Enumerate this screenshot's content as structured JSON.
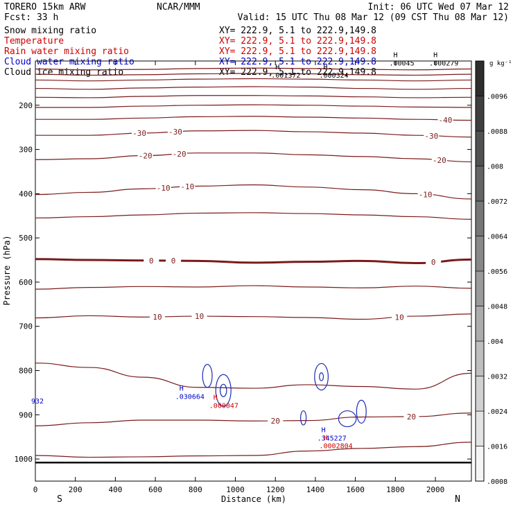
{
  "header": {
    "model": "TORERO  15km ARW",
    "center": "NCAR/MMM",
    "init": "Init: 06 UTC Wed 07 Mar 12",
    "fcst": "Fcst:   33 h",
    "valid": "Valid: 15 UTC Thu 08 Mar 12 (09 CST Thu 08 Mar 12)"
  },
  "fields": [
    {
      "name": "Snow mixing ratio",
      "xy": "XY= 222.9,  5.1 to 222.9,149.8",
      "color": "#000000"
    },
    {
      "name": "Temperature",
      "xy": "XY= 222.9,  5.1 to 222.9,149.8",
      "color": "#cc0000"
    },
    {
      "name": "Rain water mixing ratio",
      "xy": "XY= 222.9,  5.1 to 222.9,149.8",
      "color": "#cc0000"
    },
    {
      "name": "Cloud water mixing ratio",
      "xy": "XY= 222.9,  5.1 to 222.9,149.8",
      "color": "#0000cc"
    },
    {
      "name": "Cloud ice mixing ratio",
      "xy": "XY= 222.9,  5.1 to 222.9,149.8",
      "color": "#000000"
    }
  ],
  "colors": {
    "temperature": "#7a1a1a",
    "cloud_water": "#1a2ab8",
    "rain_label": "#cc0000",
    "axis": "#000000"
  },
  "chart_data": {
    "type": "cross-section",
    "xlabel": "Distance (km)",
    "ylabel": "Pressure (hPa)",
    "xlim": [
      0,
      2180
    ],
    "ylim": [
      100,
      1050
    ],
    "x_ticks": [
      0,
      200,
      400,
      600,
      800,
      1000,
      1200,
      1400,
      1600,
      1800,
      2000
    ],
    "x_tick_labels": [
      "0",
      "200",
      "400",
      "600",
      "800",
      "1000",
      "1200",
      "1400",
      "1600",
      "1800",
      "2000"
    ],
    "y_ticks": [
      200,
      300,
      400,
      500,
      600,
      700,
      800,
      900,
      1000
    ],
    "y_tick_labels": [
      "200",
      "300",
      "400",
      "500",
      "600",
      "700",
      "800",
      "900",
      "1000"
    ],
    "end_labels": {
      "left": "S",
      "right": "N"
    },
    "colorbar": {
      "unit": "g kg⁻¹",
      "labels": [
        ".0096",
        ".0088",
        ".008",
        ".0072",
        ".0064",
        ".0056",
        ".0048",
        ".004",
        ".0032",
        ".0024",
        ".0016",
        ".0008"
      ],
      "values": [
        0.0096,
        0.0088,
        0.008,
        0.0072,
        0.0064,
        0.0056,
        0.0048,
        0.004,
        0.0032,
        0.0024,
        0.0016,
        0.0008
      ],
      "levels": [
        0.0008,
        0.0016,
        0.0024,
        0.0032,
        0.004,
        0.0048,
        0.0056,
        0.0064,
        0.0072,
        0.008,
        0.0088,
        0.0096,
        0.0104
      ]
    },
    "temperature_isotherms": [
      {
        "pressures": [
          118,
          120,
          119,
          117,
          116,
          117,
          119,
          120,
          118
        ]
      },
      {
        "pressures": [
          130,
          132,
          131,
          129,
          128,
          129,
          131,
          132,
          130
        ]
      },
      {
        "pressures": [
          143,
          145,
          143,
          141,
          140,
          141,
          143,
          145,
          143
        ]
      },
      {
        "pressures": [
          162,
          164,
          161,
          159,
          158,
          159,
          162,
          164,
          162
        ]
      },
      {
        "pressures": [
          182,
          183,
          180,
          178,
          178,
          179,
          181,
          183,
          182
        ]
      },
      {
        "pressures": [
          205,
          205,
          202,
          200,
          199,
          200,
          202,
          204,
          205
        ]
      },
      {
        "pressures": [
          232,
          232,
          229,
          226,
          225,
          227,
          229,
          232,
          234
        ],
        "label": "-40",
        "label_x": [
          2050
        ]
      },
      {
        "pressures": [
          268,
          268,
          263,
          258,
          257,
          260,
          263,
          268,
          272
        ],
        "label": "-30",
        "label_x": [
          520,
          700,
          1980
        ]
      },
      {
        "pressures": [
          323,
          321,
          314,
          308,
          308,
          312,
          316,
          321,
          328
        ],
        "label": "-20",
        "label_x": [
          550,
          720,
          2020
        ]
      },
      {
        "pressures": [
          402,
          397,
          389,
          383,
          380,
          385,
          391,
          400,
          412
        ],
        "label": "-10",
        "label_x": [
          640,
          760,
          1950
        ]
      },
      {
        "pressures": [
          455,
          452,
          448,
          444,
          443,
          445,
          448,
          452,
          458
        ]
      },
      {
        "pressures": [
          548,
          550,
          551,
          552,
          556,
          554,
          552,
          557,
          549
        ],
        "label": "0",
        "label_x": [
          580,
          690,
          1990
        ],
        "bold": true
      },
      {
        "pressures": [
          616,
          612,
          610,
          611,
          608,
          611,
          613,
          609,
          614
        ]
      },
      {
        "pressures": [
          681,
          676,
          679,
          677,
          678,
          680,
          684,
          677,
          672
        ],
        "label": "10",
        "label_x": [
          610,
          820,
          1820
        ]
      },
      {
        "pressures": [
          783,
          793,
          815,
          838,
          840,
          832,
          836,
          842,
          806
        ]
      },
      {
        "pressures": [
          925,
          918,
          912,
          912,
          914,
          913,
          905,
          904,
          896
        ],
        "label": "20",
        "label_x": [
          1200,
          1880
        ]
      },
      {
        "pressures": [
          992,
          996,
          995,
          993,
          992,
          982,
          976,
          972,
          962
        ]
      }
    ],
    "isotherm_x": [
      0,
      270,
      540,
      810,
      1090,
      1360,
      1630,
      1900,
      2180
    ],
    "surface_pressure": 1008,
    "extrema": [
      {
        "type": "H",
        "value": ".001372",
        "x": 1200,
        "p": 125,
        "color": "#000000"
      },
      {
        "type": "H",
        "value": ".000324",
        "x": 1440,
        "p": 125,
        "color": "#000000"
      },
      {
        "type": "H",
        "value": ".00045",
        "x": 1790,
        "p": 98,
        "color": "#000000"
      },
      {
        "type": "H",
        "value": ".000279",
        "x": 1990,
        "p": 98,
        "color": "#000000"
      },
      {
        "type": "H",
        "value": ".030664",
        "x": 720,
        "p": 852,
        "color": "#0000cc"
      },
      {
        "type": "H",
        "value": ".000047",
        "x": 890,
        "p": 872,
        "color": "#cc0000"
      },
      {
        "type": "H",
        "value": ".345227",
        "x": 1430,
        "p": 946,
        "color": "#0000cc"
      },
      {
        "type": "H",
        "value": ".0002804",
        "x": 1440,
        "p": 963,
        "color": "#cc0000"
      },
      {
        "type": "",
        "value": "932",
        "x": 0,
        "p": 862,
        "color": "#0000cc"
      }
    ],
    "cloud_water_cells": [
      {
        "x": 860,
        "p": 812,
        "rx": 24,
        "rp": 26
      },
      {
        "x": 940,
        "p": 845,
        "rx": 38,
        "rp": 36
      },
      {
        "x": 940,
        "p": 845,
        "rx": 16,
        "rp": 14
      },
      {
        "x": 1430,
        "p": 814,
        "rx": 34,
        "rp": 30
      },
      {
        "x": 1430,
        "p": 814,
        "rx": 10,
        "rp": 9
      },
      {
        "x": 1340,
        "p": 907,
        "rx": 14,
        "rp": 16
      },
      {
        "x": 1560,
        "p": 909,
        "rx": 44,
        "rp": 18
      },
      {
        "x": 1630,
        "p": 893,
        "rx": 24,
        "rp": 26
      }
    ]
  }
}
